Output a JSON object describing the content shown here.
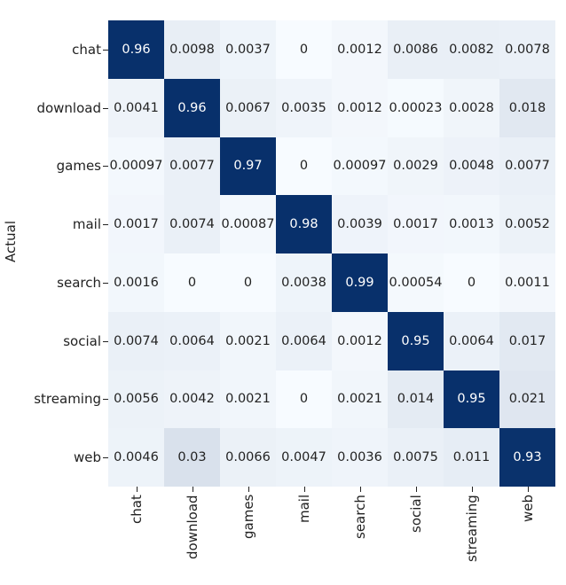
{
  "chart_data": {
    "type": "heatmap",
    "title": "",
    "xlabel": "",
    "ylabel": "Actual",
    "x_categories": [
      "chat",
      "download",
      "games",
      "mail",
      "search",
      "social",
      "streaming",
      "web"
    ],
    "y_categories": [
      "chat",
      "download",
      "games",
      "mail",
      "search",
      "social",
      "streaming",
      "web"
    ],
    "colormap": "Blues",
    "colors": {
      "low": "#f7fbff",
      "high": "#08306b"
    },
    "values": [
      [
        "0.96",
        "0.0098",
        "0.0037",
        "0",
        "0.0012",
        "0.0086",
        "0.0082",
        "0.0078"
      ],
      [
        "0.0041",
        "0.96",
        "0.0067",
        "0.0035",
        "0.0012",
        "0.00023",
        "0.0028",
        "0.018"
      ],
      [
        "0.00097",
        "0.0077",
        "0.97",
        "0",
        "0.00097",
        "0.0029",
        "0.0048",
        "0.0077"
      ],
      [
        "0.0017",
        "0.0074",
        "0.00087",
        "0.98",
        "0.0039",
        "0.0017",
        "0.0013",
        "0.0052"
      ],
      [
        "0.0016",
        "0",
        "0",
        "0.0038",
        "0.99",
        "0.00054",
        "0",
        "0.0011"
      ],
      [
        "0.0074",
        "0.0064",
        "0.0021",
        "0.0064",
        "0.0012",
        "0.95",
        "0.0064",
        "0.017"
      ],
      [
        "0.0056",
        "0.0042",
        "0.0021",
        "0",
        "0.0021",
        "0.014",
        "0.95",
        "0.021"
      ],
      [
        "0.0046",
        "0.03",
        "0.0066",
        "0.0047",
        "0.0036",
        "0.0075",
        "0.011",
        "0.93"
      ]
    ]
  }
}
